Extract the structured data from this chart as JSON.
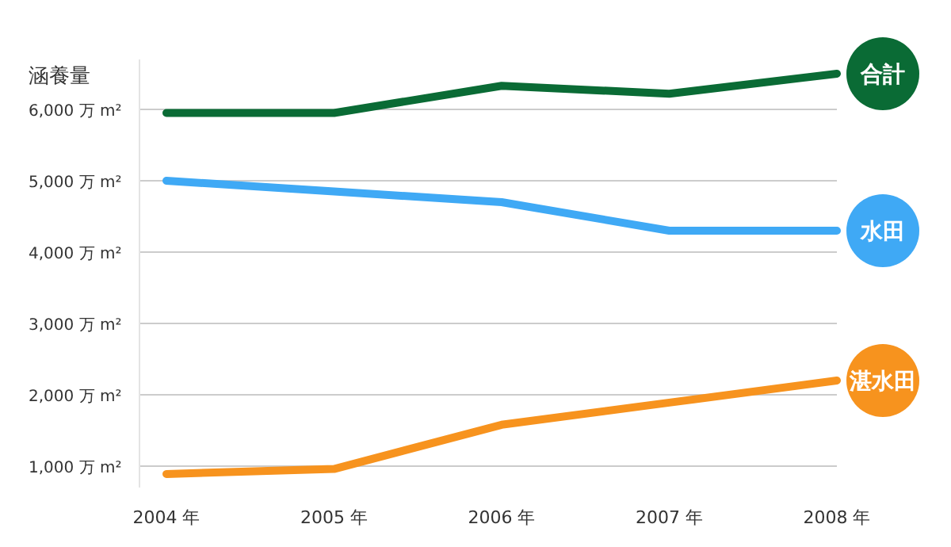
{
  "chart_data": {
    "type": "line",
    "ylabel": "涵養量",
    "categories": [
      "2004 年",
      "2005 年",
      "2006 年",
      "2007 年",
      "2008 年"
    ],
    "series": [
      {
        "name": "合計",
        "color": "#0a6b35",
        "values": [
          5950,
          5950,
          6330,
          6220,
          6500
        ]
      },
      {
        "name": "水田",
        "color": "#3fa9f5",
        "values": [
          5000,
          4850,
          4700,
          4300,
          4300
        ]
      },
      {
        "name": "湛水田",
        "color": "#f7931e",
        "values": [
          890,
          960,
          1580,
          1890,
          2200
        ]
      }
    ],
    "ylim": [
      700,
      6700
    ],
    "yticks": [
      {
        "value": 1000,
        "label": "1,000 万 m²"
      },
      {
        "value": 2000,
        "label": "2,000 万 m²"
      },
      {
        "value": 3000,
        "label": "3,000 万 m²"
      },
      {
        "value": 4000,
        "label": "4,000 万 m²"
      },
      {
        "value": 5000,
        "label": "5,000 万 m²"
      },
      {
        "value": 6000,
        "label": "6,000 万 m²"
      }
    ],
    "grid": "y",
    "legend": false,
    "marker": "none",
    "line_style": "solid"
  }
}
